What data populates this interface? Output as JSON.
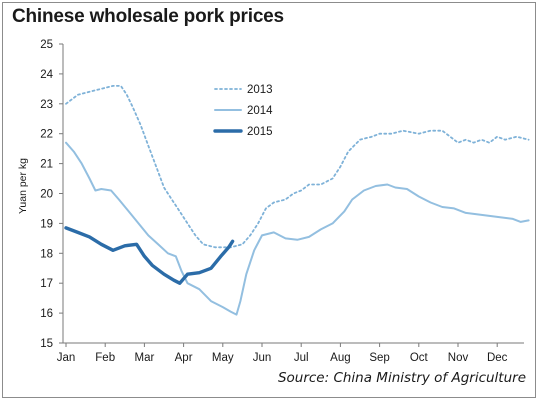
{
  "title": "Chinese wholesale pork prices",
  "source": "Source: China Ministry of Agriculture",
  "chart_data": {
    "type": "line",
    "title": "Chinese wholesale pork prices",
    "xlabel": "",
    "ylabel": "Yuan per kg",
    "ylim": [
      15,
      25
    ],
    "yticks": [
      15,
      16,
      17,
      18,
      19,
      20,
      21,
      22,
      23,
      24,
      25
    ],
    "xlim": [
      0,
      11.8
    ],
    "x_tick_labels": [
      "Jan",
      "Feb",
      "Mar",
      "Apr",
      "May",
      "Jun",
      "Jul",
      "Aug",
      "Sep",
      "Oct",
      "Nov",
      "Dec"
    ],
    "x_unit": "month index (Jan = 0)",
    "grid": false,
    "legend_position": "top-center",
    "series": [
      {
        "name": "2013",
        "style": "dotted",
        "color": "#7fb2d8",
        "points": [
          [
            0,
            23.0
          ],
          [
            0.3,
            23.3
          ],
          [
            0.6,
            23.4
          ],
          [
            0.9,
            23.5
          ],
          [
            1.2,
            23.6
          ],
          [
            1.4,
            23.6
          ],
          [
            1.55,
            23.3
          ],
          [
            1.7,
            22.9
          ],
          [
            1.9,
            22.3
          ],
          [
            2.1,
            21.6
          ],
          [
            2.3,
            20.9
          ],
          [
            2.5,
            20.2
          ],
          [
            2.7,
            19.8
          ],
          [
            2.9,
            19.4
          ],
          [
            3.1,
            19.0
          ],
          [
            3.3,
            18.6
          ],
          [
            3.5,
            18.3
          ],
          [
            3.8,
            18.2
          ],
          [
            4.2,
            18.2
          ],
          [
            4.5,
            18.3
          ],
          [
            4.7,
            18.6
          ],
          [
            4.9,
            19.0
          ],
          [
            5.1,
            19.5
          ],
          [
            5.3,
            19.7
          ],
          [
            5.6,
            19.8
          ],
          [
            5.8,
            20.0
          ],
          [
            6.0,
            20.1
          ],
          [
            6.2,
            20.3
          ],
          [
            6.5,
            20.3
          ],
          [
            6.8,
            20.5
          ],
          [
            7.0,
            20.9
          ],
          [
            7.2,
            21.4
          ],
          [
            7.5,
            21.8
          ],
          [
            7.8,
            21.9
          ],
          [
            8.0,
            22.0
          ],
          [
            8.3,
            22.0
          ],
          [
            8.6,
            22.1
          ],
          [
            9.0,
            22.0
          ],
          [
            9.3,
            22.1
          ],
          [
            9.6,
            22.1
          ],
          [
            9.8,
            21.9
          ],
          [
            10.0,
            21.7
          ],
          [
            10.2,
            21.8
          ],
          [
            10.4,
            21.7
          ],
          [
            10.6,
            21.8
          ],
          [
            10.8,
            21.7
          ],
          [
            11.0,
            21.9
          ],
          [
            11.2,
            21.8
          ],
          [
            11.5,
            21.9
          ],
          [
            11.8,
            21.8
          ]
        ]
      },
      {
        "name": "2014",
        "style": "solid-thin",
        "color": "#93bfe0",
        "points": [
          [
            0,
            21.7
          ],
          [
            0.2,
            21.4
          ],
          [
            0.4,
            21.0
          ],
          [
            0.6,
            20.5
          ],
          [
            0.75,
            20.1
          ],
          [
            0.9,
            20.15
          ],
          [
            1.15,
            20.1
          ],
          [
            1.35,
            19.8
          ],
          [
            1.6,
            19.4
          ],
          [
            1.85,
            19.0
          ],
          [
            2.1,
            18.6
          ],
          [
            2.35,
            18.3
          ],
          [
            2.6,
            18.0
          ],
          [
            2.8,
            17.9
          ],
          [
            2.95,
            17.4
          ],
          [
            3.1,
            17.0
          ],
          [
            3.4,
            16.8
          ],
          [
            3.7,
            16.4
          ],
          [
            4.0,
            16.2
          ],
          [
            4.2,
            16.05
          ],
          [
            4.35,
            15.95
          ],
          [
            4.45,
            16.4
          ],
          [
            4.6,
            17.3
          ],
          [
            4.8,
            18.1
          ],
          [
            5.0,
            18.6
          ],
          [
            5.3,
            18.7
          ],
          [
            5.6,
            18.5
          ],
          [
            5.9,
            18.45
          ],
          [
            6.2,
            18.55
          ],
          [
            6.5,
            18.8
          ],
          [
            6.8,
            19.0
          ],
          [
            7.1,
            19.4
          ],
          [
            7.3,
            19.8
          ],
          [
            7.6,
            20.1
          ],
          [
            7.9,
            20.25
          ],
          [
            8.2,
            20.3
          ],
          [
            8.4,
            20.2
          ],
          [
            8.7,
            20.15
          ],
          [
            9.0,
            19.9
          ],
          [
            9.3,
            19.7
          ],
          [
            9.6,
            19.55
          ],
          [
            9.9,
            19.5
          ],
          [
            10.2,
            19.35
          ],
          [
            10.5,
            19.3
          ],
          [
            10.8,
            19.25
          ],
          [
            11.1,
            19.2
          ],
          [
            11.4,
            19.15
          ],
          [
            11.6,
            19.05
          ],
          [
            11.8,
            19.1
          ]
        ]
      },
      {
        "name": "2015",
        "style": "solid-thick",
        "color": "#2b6ca8",
        "points": [
          [
            0,
            18.85
          ],
          [
            0.3,
            18.7
          ],
          [
            0.6,
            18.55
          ],
          [
            0.9,
            18.3
          ],
          [
            1.2,
            18.1
          ],
          [
            1.5,
            18.25
          ],
          [
            1.8,
            18.3
          ],
          [
            2.0,
            17.9
          ],
          [
            2.2,
            17.6
          ],
          [
            2.5,
            17.3
          ],
          [
            2.75,
            17.1
          ],
          [
            2.9,
            17.0
          ],
          [
            3.1,
            17.3
          ],
          [
            3.4,
            17.35
          ],
          [
            3.7,
            17.5
          ],
          [
            3.95,
            17.9
          ],
          [
            4.15,
            18.2
          ],
          [
            4.25,
            18.4
          ]
        ]
      }
    ]
  }
}
